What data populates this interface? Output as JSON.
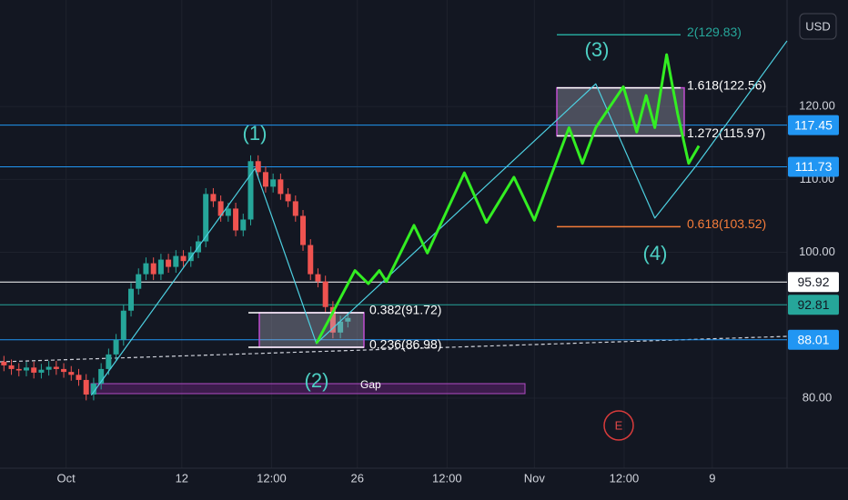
{
  "chart_data": {
    "type": "candlestick",
    "currency": "USD",
    "x": [
      0.5,
      1.45,
      2.4,
      3.35,
      4.3,
      5.25,
      6.2,
      7.15,
      8.1,
      9.05,
      10,
      10.95,
      11.9,
      12.85,
      13.8,
      14.75,
      15.7,
      16.65,
      17.6,
      18.55,
      19.5,
      20.45,
      21.4,
      22.35,
      23.3,
      24.25,
      25.2,
      26.15,
      27.1,
      28.05,
      29,
      29.95,
      30.9,
      31.85,
      32.8,
      33.75,
      34.7,
      35.65,
      36.6,
      37.55,
      38.5,
      39.45,
      40.4,
      41.35,
      42.3,
      43.25,
      44.2
    ],
    "open": [
      85,
      84.5,
      84,
      83.8,
      84.2,
      83.5,
      83.9,
      84.3,
      84,
      83.6,
      83.2,
      82.5,
      80.5,
      82,
      84,
      86,
      88,
      92,
      95,
      97,
      98.5,
      97,
      99,
      98,
      99.5,
      98.8,
      100,
      101.5,
      108,
      107,
      105,
      106,
      103,
      104.5,
      112.5,
      111,
      109,
      110,
      108,
      107,
      105,
      101,
      97,
      96,
      92.5,
      89,
      90.5
    ],
    "high": [
      85.8,
      85.3,
      84.8,
      85,
      85,
      84.7,
      85.1,
      85.1,
      84.8,
      84.4,
      84,
      83.3,
      82.8,
      84.8,
      86.8,
      88.8,
      92.8,
      95.8,
      97.8,
      99.3,
      99.3,
      99.8,
      99.8,
      100.3,
      100.3,
      100.8,
      102.3,
      108.8,
      108.8,
      107.8,
      106.8,
      106.8,
      105.3,
      113.3,
      113.3,
      111.8,
      110.8,
      110.8,
      108.8,
      107.8,
      105.8,
      101.8,
      97.8,
      96.8,
      93.3,
      91.3,
      91.8
    ],
    "low": [
      83.7,
      83.2,
      83,
      83,
      82.7,
      82.7,
      83.1,
      83.2,
      82.8,
      82.4,
      81.7,
      79.7,
      79.7,
      81.2,
      83.2,
      85.2,
      87.2,
      91.2,
      94.2,
      96.2,
      96.2,
      96.2,
      97.2,
      97.2,
      98,
      98,
      99.2,
      100.7,
      106.2,
      104.2,
      104.2,
      102.2,
      102.2,
      103.7,
      110.2,
      108.2,
      108.2,
      107.2,
      106.2,
      104.2,
      100.2,
      96.2,
      95.2,
      91.7,
      88.2,
      88.2,
      89.7
    ],
    "close": [
      84.5,
      84,
      83.8,
      84.2,
      83.5,
      83.9,
      84.3,
      84,
      83.6,
      83.2,
      82.5,
      80.5,
      82,
      84,
      86,
      88,
      92,
      95,
      97,
      98.5,
      97,
      99,
      98,
      99.5,
      98.8,
      100,
      101.5,
      108,
      107,
      105,
      106,
      103,
      104.5,
      112.5,
      111,
      109,
      110,
      108,
      107,
      105,
      101,
      97,
      96,
      92.5,
      89,
      90.5,
      91
    ],
    "up_color": "#26a69a",
    "down_color": "#ef5350",
    "xlim": [
      0,
      100
    ],
    "ylim": [
      70.4,
      134.6
    ],
    "xticks": [
      {
        "value": 8.4,
        "label": "Oct"
      },
      {
        "value": 23.1,
        "label": "12"
      },
      {
        "value": 34.5,
        "label": "12:00"
      },
      {
        "value": 45.4,
        "label": "26"
      },
      {
        "value": 56.8,
        "label": "12:00"
      },
      {
        "value": 67.9,
        "label": "Nov"
      },
      {
        "value": 79.3,
        "label": "12:00"
      },
      {
        "value": 90.5,
        "label": "9"
      }
    ],
    "yticks": [
      {
        "value": 80,
        "label": "80.00"
      },
      {
        "value": 100,
        "label": "100.00"
      },
      {
        "value": 110,
        "label": "110.00"
      },
      {
        "value": 120,
        "label": "120.00"
      }
    ],
    "price_tags": [
      {
        "value": 117.45,
        "color": "#2196f3",
        "text_color": "#ffffff"
      },
      {
        "value": 111.73,
        "color": "#2196f3",
        "text_color": "#ffffff"
      },
      {
        "value": 95.92,
        "color": "#ffffff",
        "text_color": "#131722"
      },
      {
        "value": 92.81,
        "color": "#26a69a",
        "text_color": "#131722"
      },
      {
        "value": 88.01,
        "color": "#2196f3",
        "text_color": "#ffffff"
      }
    ],
    "fib_upper": [
      {
        "label": "2(129.83)",
        "price": 129.83,
        "color": "#26a69a"
      },
      {
        "label": "1.618(122.56)",
        "price": 122.56,
        "color": "#ffffff"
      },
      {
        "label": "1.272(115.97)",
        "price": 115.97,
        "color": "#ffffff"
      },
      {
        "label": "0.618(103.52)",
        "price": 103.52,
        "color": "#f57c3a"
      }
    ],
    "fib_lower": [
      {
        "label": "0.382(91.72)",
        "price": 91.72,
        "color": "#ffffff"
      },
      {
        "label": "0.236(86.98)",
        "price": 86.98,
        "color": "#ffffff"
      }
    ],
    "wave_labels": [
      "(1)",
      "(2)",
      "(3)",
      "(4)"
    ],
    "projection": {
      "color": "#33ee22",
      "x": [
        40.2,
        45.1,
        46.8,
        48.2,
        49.1,
        52.6,
        54.3,
        59.0,
        61.8,
        65.3,
        67.9,
        72.3,
        74.0,
        75.7,
        79.2,
        80.9,
        82.1,
        83.2,
        84.7,
        86.1,
        87.5,
        88.8
      ],
      "y": [
        87.5,
        97.5,
        95.7,
        97.5,
        96.0,
        103.7,
        99.9,
        110.9,
        104.1,
        110.3,
        104.4,
        117.1,
        112.2,
        117.1,
        122.7,
        116.5,
        121.5,
        117.1,
        127.1,
        119.0,
        112.2,
        114.6
      ]
    },
    "wave_path": {
      "color": "#4dd0e1",
      "x": [
        11.6,
        32.4,
        40.2,
        75.7,
        83.2,
        88.4,
        100
      ],
      "y": [
        80.4,
        111.5,
        87.5,
        123.1,
        104.7,
        111.8,
        129.0
      ]
    },
    "gap_label": "Gap",
    "event_label": "E"
  }
}
